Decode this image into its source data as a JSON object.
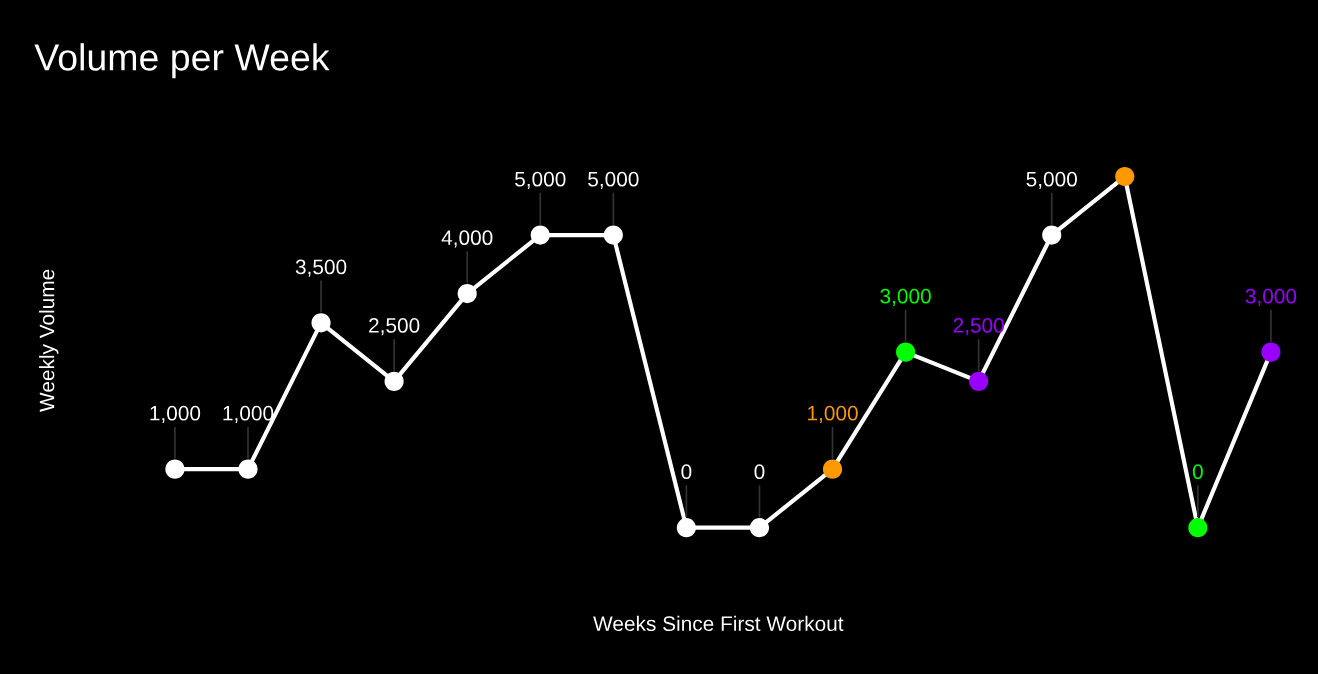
{
  "chart_data": {
    "type": "line",
    "title": "Volume per Week",
    "xlabel": "Weeks Since First Workout",
    "ylabel": "Weekly Volume",
    "categories": [
      null,
      null,
      null,
      null,
      null,
      null,
      null,
      null,
      null,
      null,
      null,
      null,
      null,
      null,
      null,
      null
    ],
    "series": [
      {
        "color": "#ffffff",
        "values": [
          1000,
          1000,
          3500,
          2500,
          4000,
          5000,
          5000,
          0,
          0,
          1000,
          3000,
          2500,
          5000,
          6000,
          0,
          3000
        ],
        "colors": [
          "#ffffff",
          "#ffffff",
          "#ffffff",
          "#ffffff",
          "#ffffff",
          "#ffffff",
          "#ffffff",
          "#ffffff",
          "#ffffff",
          "#ff9900",
          "#00ff00",
          "#9900ff",
          "#ffffff",
          "#ff9900",
          "#00ff00",
          "#9900ff"
        ],
        "value_labels": [
          "1,000",
          "1,000",
          "3,500",
          "2,500",
          "4,000",
          "5,000",
          "5,000",
          "0",
          "0",
          "1,000",
          "3,000",
          "2,500",
          "5,000",
          null,
          "0",
          "3,000"
        ]
      }
    ],
    "marker": "circle",
    "line_style": "solid",
    "tick_labels": false
  }
}
